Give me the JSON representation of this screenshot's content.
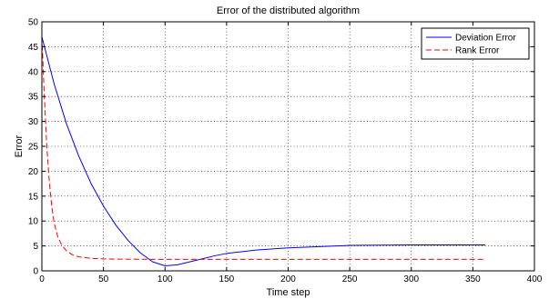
{
  "chart_data": {
    "type": "line",
    "title": "Error of the distributed algorithm",
    "xlabel": "Time step",
    "ylabel": "Error",
    "xlim": [
      0,
      400
    ],
    "ylim": [
      0,
      50
    ],
    "xticks": [
      0,
      50,
      100,
      150,
      200,
      250,
      300,
      350,
      400
    ],
    "yticks": [
      0,
      5,
      10,
      15,
      20,
      25,
      30,
      35,
      40,
      45,
      50
    ],
    "grid": true,
    "legend": "top-right",
    "series": [
      {
        "name": "Deviation Error",
        "color": "#0000ff",
        "style": "solid",
        "x": [
          0,
          10,
          20,
          30,
          40,
          50,
          60,
          70,
          80,
          90,
          100,
          110,
          120,
          130,
          140,
          150,
          175,
          200,
          250,
          300,
          360
        ],
        "y": [
          47,
          37.5,
          29.5,
          23.0,
          17.5,
          13.0,
          9.2,
          6.1,
          3.6,
          1.8,
          1.0,
          1.2,
          1.8,
          2.4,
          3.0,
          3.5,
          4.2,
          4.6,
          5.1,
          5.2,
          5.2
        ]
      },
      {
        "name": "Rank Error",
        "color": "#ff0000",
        "style": "dashed",
        "x": [
          0,
          2,
          4,
          6,
          8,
          10,
          13,
          16,
          20,
          25,
          30,
          40,
          50,
          60,
          100,
          150,
          200,
          250,
          300,
          360
        ],
        "y": [
          47,
          35,
          25,
          18,
          13,
          9.5,
          6.8,
          5.2,
          4.0,
          3.2,
          2.8,
          2.5,
          2.4,
          2.35,
          2.3,
          2.3,
          2.3,
          2.3,
          2.3,
          2.3
        ]
      }
    ]
  }
}
